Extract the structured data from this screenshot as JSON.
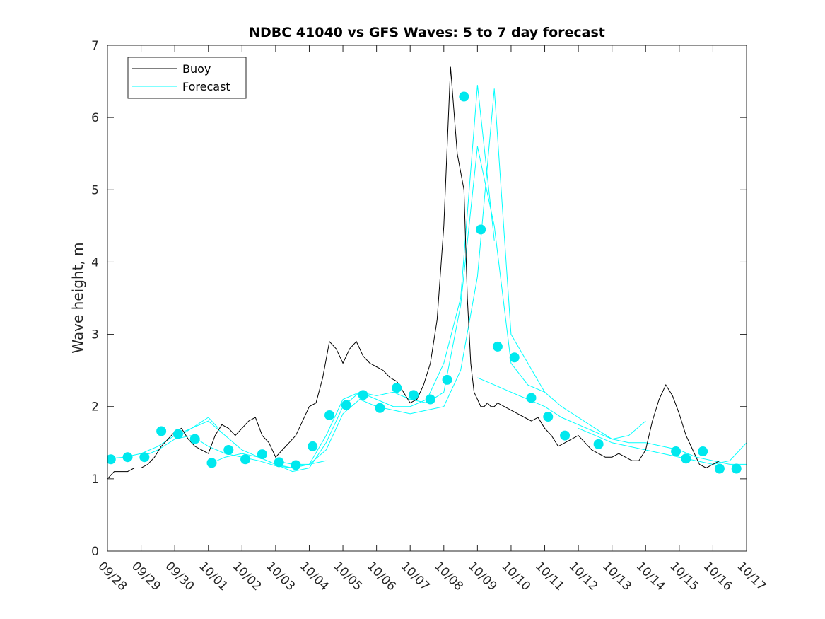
{
  "chart_data": {
    "type": "line",
    "title": "NDBC 41040 vs GFS Waves: 5 to 7 day forecast",
    "xlabel": "",
    "ylabel": "Wave height, m",
    "xlim": [
      0,
      19
    ],
    "ylim": [
      0,
      7
    ],
    "yticks": [
      0,
      1,
      2,
      3,
      4,
      5,
      6,
      7
    ],
    "xtick_labels": [
      "09/28",
      "09/29",
      "09/30",
      "10/01",
      "10/02",
      "10/03",
      "10/04",
      "10/05",
      "10/06",
      "10/07",
      "10/08",
      "10/09",
      "10/10",
      "10/11",
      "10/12",
      "10/13",
      "10/14",
      "10/15",
      "10/16",
      "10/17"
    ],
    "legend": {
      "location": "top-left",
      "entries": [
        "Buoy",
        "Forecast"
      ]
    },
    "colors": {
      "buoy": "#000000",
      "forecast": "#00ffff",
      "marker": "#00e8ee",
      "axis": "#262626"
    },
    "series": [
      {
        "name": "Buoy",
        "x": [
          0,
          0.2,
          0.4,
          0.6,
          0.8,
          1,
          1.2,
          1.4,
          1.6,
          1.8,
          2,
          2.2,
          2.4,
          2.6,
          2.8,
          3,
          3.2,
          3.4,
          3.6,
          3.8,
          4,
          4.2,
          4.4,
          4.6,
          4.8,
          5,
          5.2,
          5.4,
          5.6,
          5.8,
          6,
          6.2,
          6.4,
          6.6,
          6.8,
          7,
          7.2,
          7.4,
          7.6,
          7.8,
          8,
          8.2,
          8.4,
          8.6,
          8.8,
          9,
          9.2,
          9.4,
          9.6,
          9.8,
          10,
          10.2,
          10.4,
          10.6,
          10.7,
          10.8,
          10.9,
          11,
          11.1,
          11.2,
          11.3,
          11.4,
          11.5,
          11.6,
          11.8,
          12,
          12.2,
          12.4,
          12.6,
          12.8,
          13,
          13.2,
          13.4,
          13.6,
          13.8,
          14,
          14.2,
          14.4,
          14.6,
          14.8,
          15,
          15.2,
          15.4,
          15.6,
          15.8,
          16,
          16.2,
          16.4,
          16.6,
          16.8,
          17,
          17.2,
          17.4,
          17.6,
          17.8,
          18,
          18.2
        ],
        "y": [
          1.0,
          1.1,
          1.1,
          1.1,
          1.15,
          1.15,
          1.2,
          1.3,
          1.45,
          1.55,
          1.65,
          1.7,
          1.55,
          1.45,
          1.4,
          1.35,
          1.6,
          1.75,
          1.7,
          1.6,
          1.7,
          1.8,
          1.85,
          1.6,
          1.5,
          1.3,
          1.4,
          1.5,
          1.6,
          1.8,
          2.0,
          2.05,
          2.4,
          2.9,
          2.8,
          2.6,
          2.8,
          2.9,
          2.7,
          2.6,
          2.55,
          2.5,
          2.4,
          2.35,
          2.2,
          2.05,
          2.1,
          2.3,
          2.6,
          3.2,
          4.5,
          6.7,
          5.5,
          5.0,
          3.5,
          2.6,
          2.2,
          2.1,
          2.0,
          2.0,
          2.05,
          2.0,
          2.0,
          2.05,
          2.0,
          1.95,
          1.9,
          1.85,
          1.8,
          1.85,
          1.7,
          1.6,
          1.45,
          1.5,
          1.55,
          1.6,
          1.5,
          1.4,
          1.35,
          1.3,
          1.3,
          1.35,
          1.3,
          1.25,
          1.25,
          1.4,
          1.8,
          2.1,
          2.3,
          2.15,
          1.9,
          1.6,
          1.4,
          1.2,
          1.15,
          1.2,
          1.25
        ]
      },
      {
        "name": "Forecast",
        "lines": [
          {
            "x": [
              0,
              0.5,
              1,
              1.5,
              2,
              2.5,
              3,
              3.3
            ],
            "y": [
              1.28,
              1.3,
              1.35,
              1.45,
              1.6,
              1.7,
              1.85,
              1.7
            ]
          },
          {
            "x": [
              1,
              1.5,
              2,
              2.5,
              3,
              3.5,
              4,
              4.5,
              5,
              5.5,
              6,
              6.5
            ],
            "y": [
              1.3,
              1.4,
              1.55,
              1.6,
              1.45,
              1.35,
              1.3,
              1.25,
              1.18,
              1.15,
              1.2,
              1.25
            ]
          },
          {
            "x": [
              2,
              2.5,
              3,
              3.5,
              4,
              4.5,
              5,
              5.5,
              6,
              6.5,
              7,
              7.5,
              8,
              8.5,
              9,
              9.5,
              10,
              10.5,
              11,
              11.5
            ],
            "y": [
              1.55,
              1.7,
              1.8,
              1.6,
              1.4,
              1.3,
              1.2,
              1.15,
              1.2,
              1.6,
              2.1,
              2.2,
              2.1,
              2.0,
              2.0,
              2.1,
              2.6,
              3.5,
              6.45,
              4.3
            ]
          },
          {
            "x": [
              3,
              3.5,
              4,
              4.5,
              5,
              5.5,
              6,
              6.5,
              7,
              7.5,
              8,
              8.5,
              9,
              9.5,
              10,
              10.5,
              11,
              11.5,
              12,
              12.5,
              13
            ],
            "y": [
              1.2,
              1.3,
              1.35,
              1.3,
              1.2,
              1.1,
              1.15,
              1.5,
              2.0,
              2.2,
              2.15,
              2.2,
              2.1,
              2.05,
              2.2,
              3.4,
              5.6,
              4.5,
              2.6,
              2.3,
              2.2
            ]
          },
          {
            "x": [
              5,
              5.5,
              6,
              6.5,
              7,
              7.5,
              8,
              8.5,
              9,
              9.5,
              10,
              10.5,
              11,
              11.5,
              12,
              12.5,
              13,
              13.5,
              14,
              14.5,
              15,
              15.5,
              16
            ],
            "y": [
              1.25,
              1.2,
              1.2,
              1.4,
              1.9,
              2.1,
              2.0,
              1.95,
              1.9,
              1.95,
              2.0,
              2.5,
              3.8,
              6.4,
              3.0,
              2.6,
              2.2,
              2.0,
              1.85,
              1.7,
              1.55,
              1.6,
              1.8
            ]
          },
          {
            "x": [
              11,
              11.5,
              12,
              12.5,
              13,
              13.5,
              14,
              14.5,
              15,
              15.5,
              16,
              16.5,
              17,
              17.5,
              18,
              18.5,
              19
            ],
            "y": [
              2.4,
              2.3,
              2.2,
              2.1,
              2.0,
              1.85,
              1.75,
              1.65,
              1.55,
              1.5,
              1.5,
              1.45,
              1.4,
              1.3,
              1.25,
              1.2,
              1.2
            ]
          },
          {
            "x": [
              14,
              14.5,
              15,
              15.5,
              16,
              16.5,
              17,
              17.5,
              18,
              18.5,
              19
            ],
            "y": [
              1.7,
              1.6,
              1.5,
              1.45,
              1.4,
              1.35,
              1.3,
              1.25,
              1.2,
              1.25,
              1.5
            ]
          }
        ],
        "markers": {
          "x": [
            0.1,
            0.6,
            1.1,
            1.6,
            2.1,
            2.6,
            3.1,
            3.6,
            4.1,
            4.6,
            5.1,
            5.6,
            6.1,
            6.6,
            7.1,
            7.6,
            8.1,
            8.6,
            9.1,
            9.6,
            10.1,
            10.6,
            11.1,
            11.6,
            12.1,
            12.6,
            13.1,
            13.6,
            14.6,
            16.9,
            17.2,
            17.7,
            18.2,
            18.7
          ],
          "y": [
            1.27,
            1.3,
            1.3,
            1.66,
            1.62,
            1.55,
            1.22,
            1.4,
            1.27,
            1.34,
            1.23,
            1.19,
            1.45,
            1.88,
            2.02,
            2.16,
            1.98,
            2.26,
            2.16,
            2.1,
            2.37,
            6.29,
            4.45,
            2.83,
            2.68,
            2.12,
            1.86,
            1.6,
            1.48,
            1.38,
            1.28,
            1.38,
            1.14,
            1.14
          ]
        }
      }
    ]
  }
}
